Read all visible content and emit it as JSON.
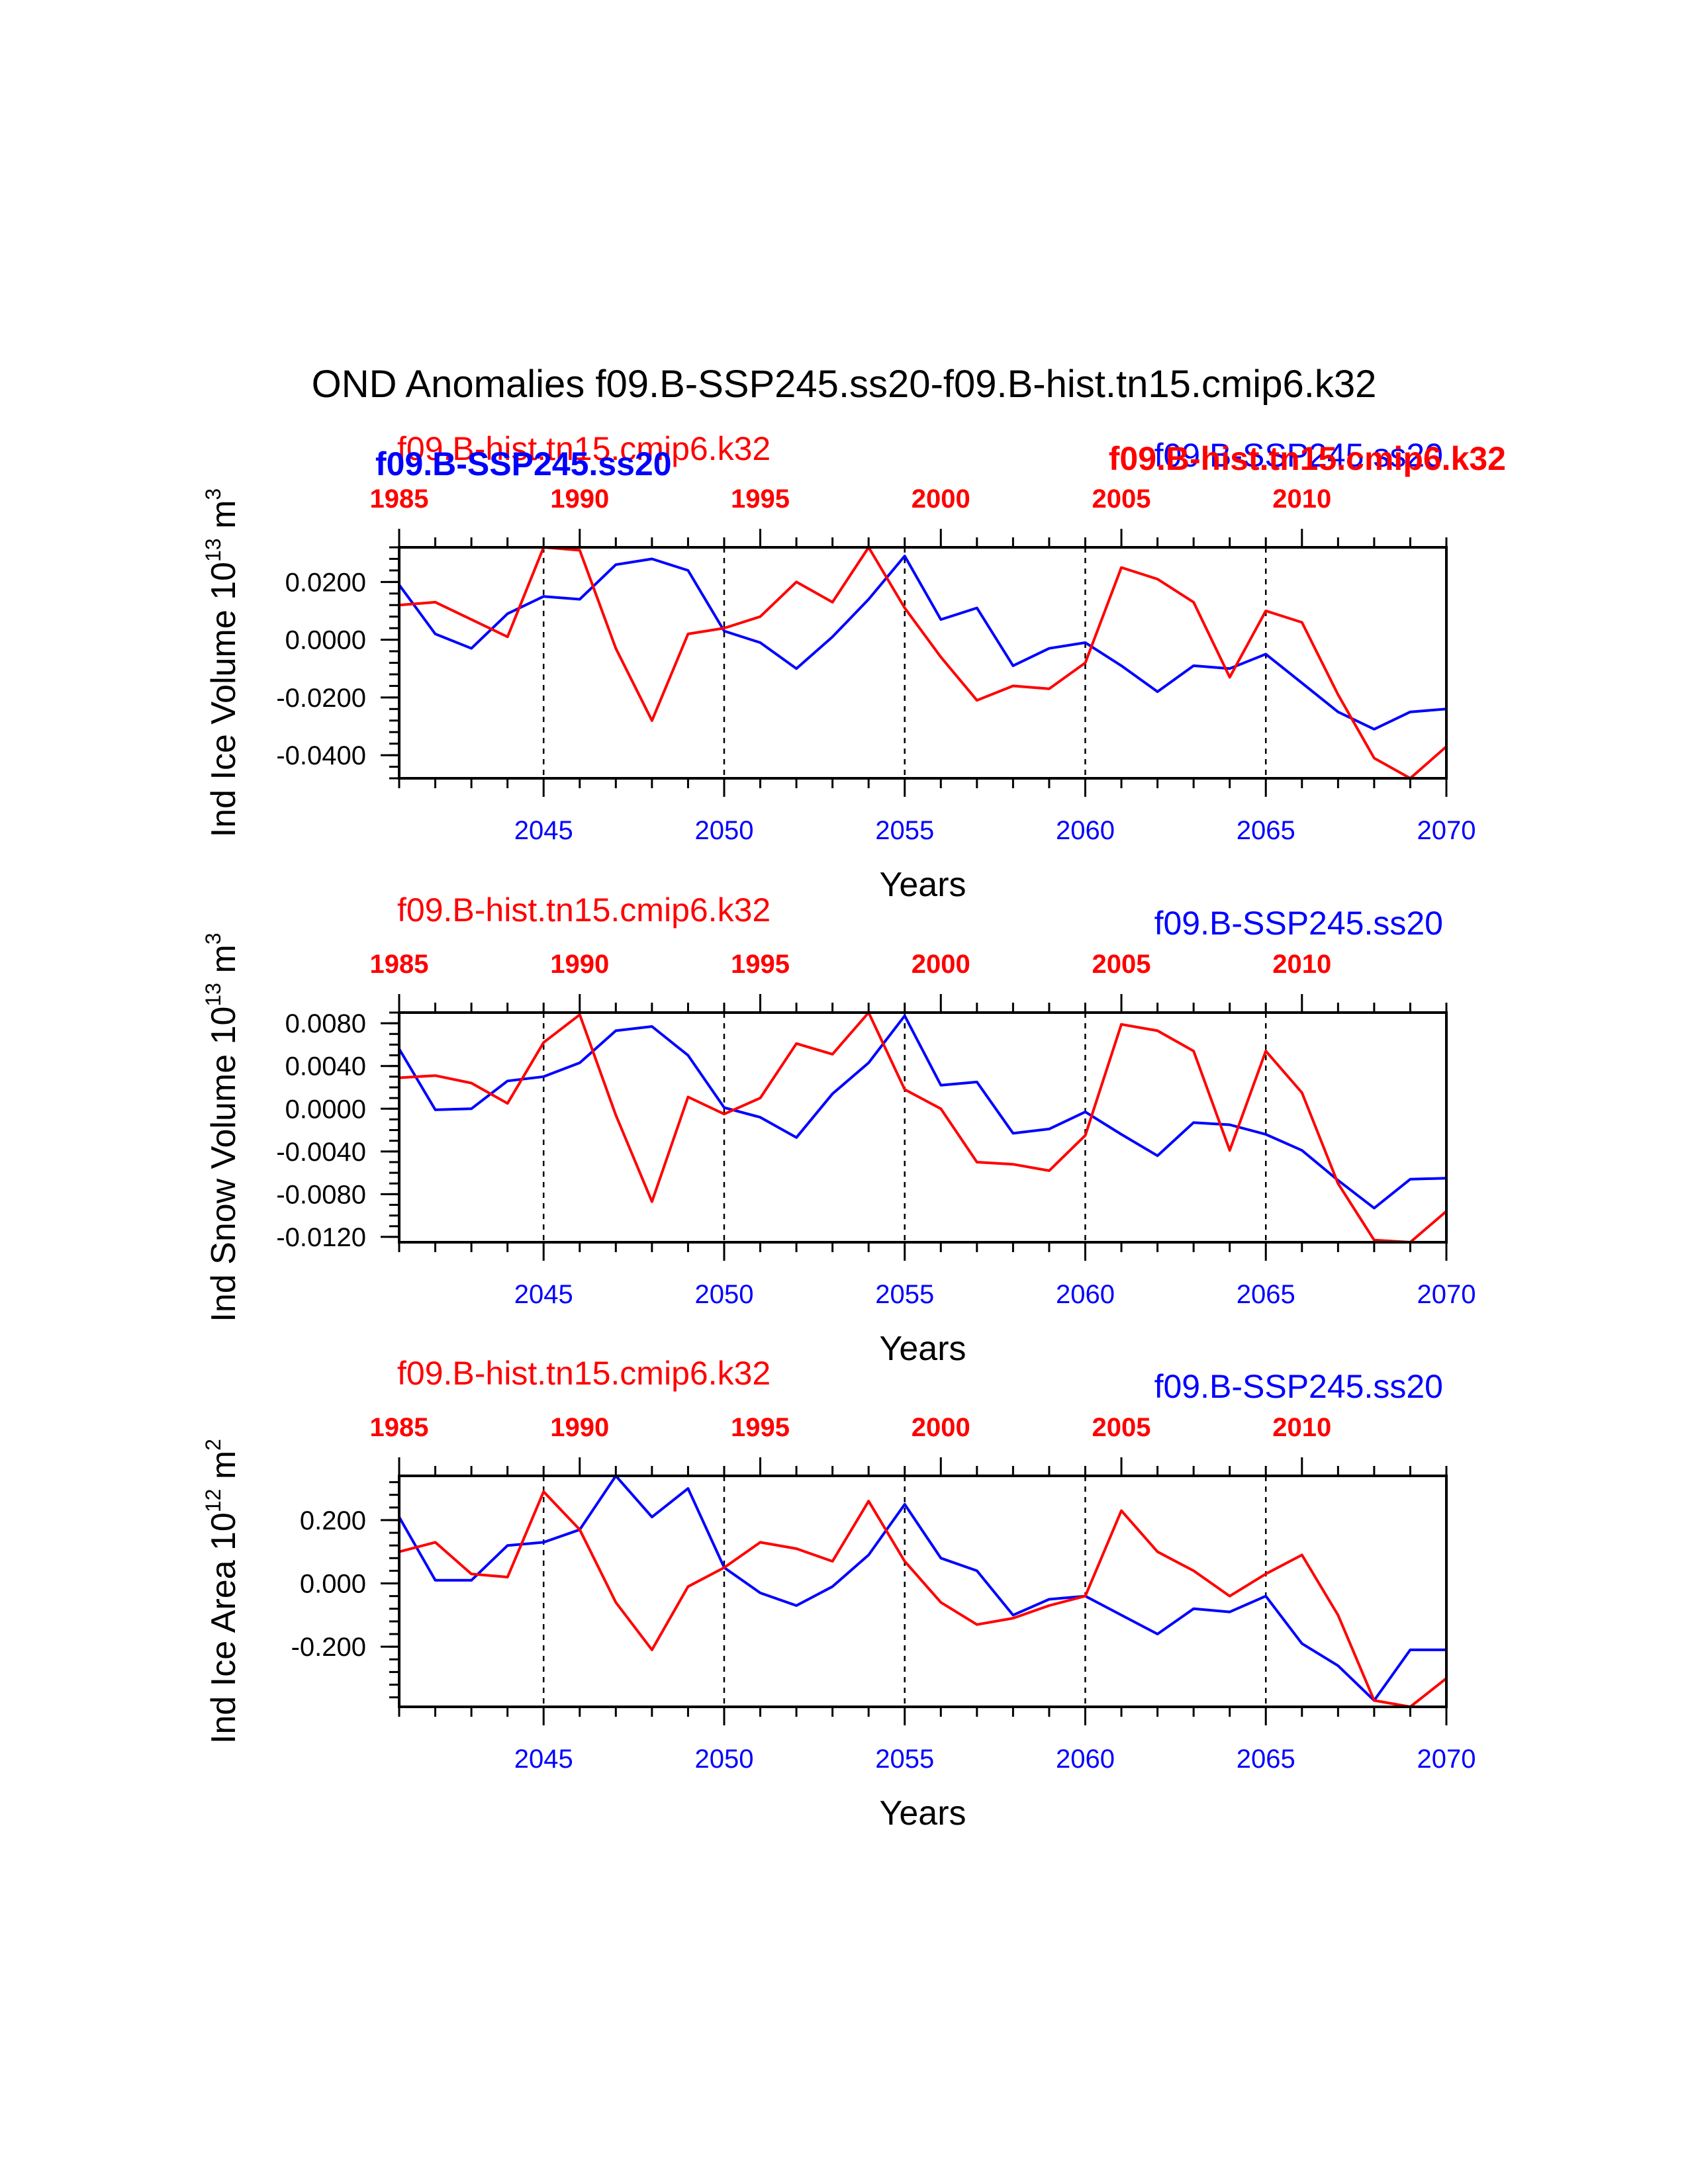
{
  "title": "OND Anomalies f09.B-SSP245.ss20-f09.B-hist.tn15.cmip6.k32",
  "colors": {
    "ssp": "#0000ff",
    "hist": "#ff0000",
    "axis": "#000000"
  },
  "header_overlap": {
    "hist_label": "f09.B-hist.tn15.cmip6.k32",
    "ssp_bold_label": "f09.B-SSP245.ss20",
    "ssp_label": "f09.B-SSP245.ss20",
    "hist_bold_label": "f09.B-hist.tn15.cmip6.k32"
  },
  "chart_data": [
    {
      "type": "line",
      "ylabel": "Ind Ice Volume 10",
      "ylabel_exp": "13",
      "ylabel_unit": "m",
      "ylabel_unit_exp": "3",
      "xlabel": "Years",
      "ylim": [
        -0.048,
        0.032
      ],
      "yticks": [
        0.02,
        0.0,
        -0.02,
        -0.04
      ],
      "ytick_labels": [
        "0.0200",
        "0.0000",
        "-0.0200",
        "-0.0400"
      ],
      "yminor_step": 0.004,
      "bottom_axis": {
        "range": [
          2041,
          2070
        ],
        "ticks": [
          2045,
          2050,
          2055,
          2060,
          2065,
          2070
        ]
      },
      "top_axis": {
        "range": [
          1985,
          2014
        ],
        "ticks": [
          1985,
          1990,
          1995,
          2000,
          2005,
          2010
        ]
      },
      "show_series_labels": false,
      "series": [
        {
          "name": "f09.B-SSP245.ss20",
          "color": "#0000ff",
          "values": [
            0.019,
            0.002,
            -0.003,
            0.009,
            0.015,
            0.014,
            0.026,
            0.028,
            0.024,
            0.003,
            -0.001,
            -0.01,
            0.001,
            0.014,
            0.029,
            0.007,
            0.011,
            -0.009,
            -0.003,
            -0.001,
            -0.009,
            -0.018,
            -0.009,
            -0.01,
            -0.005,
            -0.015,
            -0.025,
            -0.031,
            -0.025,
            -0.024
          ]
        },
        {
          "name": "f09.B-hist.tn15.cmip6.k32",
          "color": "#ff0000",
          "values": [
            0.012,
            0.013,
            0.007,
            0.001,
            0.032,
            0.031,
            -0.003,
            -0.028,
            0.002,
            0.004,
            0.008,
            0.02,
            0.013,
            0.032,
            0.011,
            -0.006,
            -0.021,
            -0.016,
            -0.017,
            -0.008,
            0.025,
            0.021,
            0.013,
            -0.013,
            0.01,
            0.006,
            -0.019,
            -0.041,
            -0.048,
            -0.037
          ]
        }
      ]
    },
    {
      "type": "line",
      "ylabel": "Ind Snow Volume 10",
      "ylabel_exp": "13",
      "ylabel_unit": "m",
      "ylabel_unit_exp": "3",
      "xlabel": "Years",
      "ylim": [
        -0.0125,
        0.009
      ],
      "yticks": [
        0.008,
        0.004,
        0.0,
        -0.004,
        -0.008,
        -0.012
      ],
      "ytick_labels": [
        "0.0080",
        "0.0040",
        "0.0000",
        "-0.0040",
        "-0.0080",
        "-0.0120"
      ],
      "yminor_step": 0.001,
      "bottom_axis": {
        "range": [
          2041,
          2070
        ],
        "ticks": [
          2045,
          2050,
          2055,
          2060,
          2065,
          2070
        ]
      },
      "top_axis": {
        "range": [
          1985,
          2014
        ],
        "ticks": [
          1985,
          1990,
          1995,
          2000,
          2005,
          2010
        ]
      },
      "show_series_labels": true,
      "series": [
        {
          "name": "f09.B-SSP245.ss20",
          "color": "#0000ff",
          "values": [
            0.0056,
            -0.0001,
            0.0,
            0.0026,
            0.003,
            0.0043,
            0.0073,
            0.0077,
            0.005,
            0.0001,
            -0.0008,
            -0.0027,
            0.0014,
            0.0043,
            0.0087,
            0.0022,
            0.0025,
            -0.0023,
            -0.0019,
            -0.0003,
            -0.0024,
            -0.0044,
            -0.0013,
            -0.0015,
            -0.0024,
            -0.0039,
            -0.0067,
            -0.0093,
            -0.0066,
            -0.0065
          ]
        },
        {
          "name": "f09.B-hist.tn15.cmip6.k32",
          "color": "#ff0000",
          "values": [
            0.0029,
            0.0031,
            0.0024,
            0.0005,
            0.0062,
            0.0088,
            -0.0006,
            -0.0087,
            0.0011,
            -0.0005,
            0.001,
            0.0061,
            0.0051,
            0.009,
            0.0018,
            0.0,
            -0.005,
            -0.0052,
            -0.0058,
            -0.0025,
            0.0079,
            0.0073,
            0.0054,
            -0.0039,
            0.0054,
            0.0015,
            -0.007,
            -0.0123,
            -0.0125,
            -0.0096
          ]
        }
      ]
    },
    {
      "type": "line",
      "ylabel": "Ind Ice Area 10",
      "ylabel_exp": "12",
      "ylabel_unit": "m",
      "ylabel_unit_exp": "2",
      "xlabel": "Years",
      "ylim": [
        -0.39,
        0.34
      ],
      "yticks": [
        0.2,
        0.0,
        -0.2
      ],
      "ytick_labels": [
        "0.200",
        "0.000",
        "-0.200"
      ],
      "yminor_step": 0.04,
      "bottom_axis": {
        "range": [
          2041,
          2070
        ],
        "ticks": [
          2045,
          2050,
          2055,
          2060,
          2065,
          2070
        ]
      },
      "top_axis": {
        "range": [
          1985,
          2014
        ],
        "ticks": [
          1985,
          1990,
          1995,
          2000,
          2005,
          2010
        ]
      },
      "show_series_labels": true,
      "series": [
        {
          "name": "f09.B-SSP245.ss20",
          "color": "#0000ff",
          "values": [
            0.21,
            0.01,
            0.01,
            0.12,
            0.13,
            0.17,
            0.34,
            0.21,
            0.3,
            0.05,
            -0.03,
            -0.07,
            -0.01,
            0.09,
            0.25,
            0.08,
            0.04,
            -0.1,
            -0.05,
            -0.04,
            -0.1,
            -0.16,
            -0.08,
            -0.09,
            -0.04,
            -0.19,
            -0.26,
            -0.37,
            -0.21,
            -0.21
          ]
        },
        {
          "name": "f09.B-hist.tn15.cmip6.k32",
          "color": "#ff0000",
          "values": [
            0.1,
            0.13,
            0.03,
            0.02,
            0.29,
            0.17,
            -0.06,
            -0.21,
            -0.01,
            0.05,
            0.13,
            0.11,
            0.07,
            0.26,
            0.07,
            -0.06,
            -0.13,
            -0.11,
            -0.07,
            -0.04,
            0.23,
            0.1,
            0.04,
            -0.04,
            0.03,
            0.09,
            -0.1,
            -0.37,
            -0.39,
            -0.3
          ]
        }
      ]
    }
  ]
}
